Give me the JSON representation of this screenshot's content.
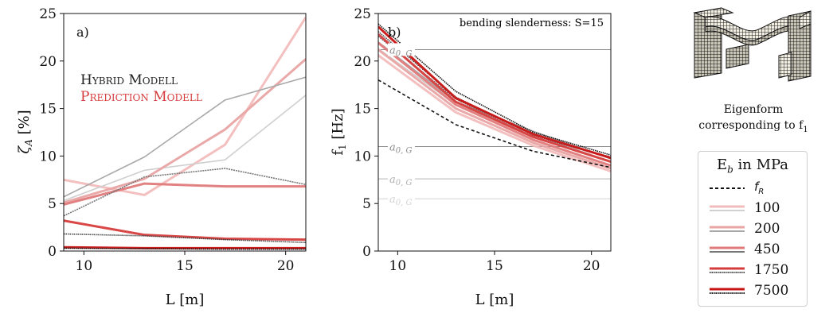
{
  "figure": {
    "panel_a_tag": "a)",
    "panel_b_tag": "b)",
    "annotation_b": "bending slenderness: S=15",
    "model_text_1": "Hybrid Modell",
    "model_text_2": "Prediction Modell",
    "eigen_caption_line1": "Eigenform",
    "eigen_caption_line2": "corresponding to f",
    "eigen_caption_sub": "1"
  },
  "legend": {
    "title": "E",
    "title_sub": "b",
    "title_rest": " in MPa",
    "entries": [
      {
        "label": "f",
        "sub": "R"
      },
      {
        "label": "100"
      },
      {
        "label": "200"
      },
      {
        "label": "450"
      },
      {
        "label": "1750"
      },
      {
        "label": "7500"
      }
    ]
  },
  "chart_data": [
    {
      "type": "line",
      "panel": "a",
      "xlabel": "L [m]",
      "ylabel": "ζ",
      "ylabel_sub": "A",
      "ylabel_unit": " [%]",
      "xlim": [
        9,
        21
      ],
      "ylim": [
        0,
        25
      ],
      "xticks": [
        10,
        15,
        20
      ],
      "yticks": [
        0,
        5,
        10,
        15,
        20,
        25
      ],
      "x": [
        9,
        13,
        17,
        21
      ],
      "colors": {
        "100": "#f2bcbc",
        "200": "#e9a4a4",
        "450": "#e07a7a",
        "1750": "#d63c3c",
        "7500": "#c91414",
        "hybrid": "#111111"
      },
      "series": [
        {
          "Eb": "100",
          "model": "prediction",
          "values": [
            7.5,
            5.9,
            11.2,
            24.6
          ]
        },
        {
          "Eb": "100",
          "model": "hybrid",
          "values": [
            5.3,
            8.5,
            9.6,
            16.4
          ]
        },
        {
          "Eb": "200",
          "model": "prediction",
          "values": [
            5.1,
            7.6,
            12.8,
            20.2
          ]
        },
        {
          "Eb": "200",
          "model": "hybrid",
          "values": [
            5.7,
            9.9,
            15.9,
            18.3
          ]
        },
        {
          "Eb": "450",
          "model": "prediction",
          "values": [
            4.9,
            7.1,
            6.8,
            6.8
          ]
        },
        {
          "Eb": "450",
          "model": "hybrid",
          "values": [
            3.7,
            7.8,
            8.7,
            7.0
          ]
        },
        {
          "Eb": "1750",
          "model": "prediction",
          "values": [
            3.2,
            1.7,
            1.3,
            1.2
          ]
        },
        {
          "Eb": "1750",
          "model": "hybrid",
          "values": [
            1.8,
            1.6,
            1.2,
            0.9
          ]
        },
        {
          "Eb": "7500",
          "model": "prediction",
          "values": [
            0.4,
            0.3,
            0.3,
            0.3
          ]
        },
        {
          "Eb": "7500",
          "model": "hybrid",
          "values": [
            0.3,
            0.25,
            0.2,
            0.2
          ]
        }
      ]
    },
    {
      "type": "line",
      "panel": "b",
      "xlabel": "L [m]",
      "ylabel": "f",
      "ylabel_sub": "1",
      "ylabel_unit": " [Hz]",
      "xlim": [
        9,
        21
      ],
      "ylim": [
        0,
        25
      ],
      "xticks": [
        10,
        15,
        20
      ],
      "yticks": [
        0,
        5,
        10,
        15,
        20,
        25
      ],
      "x": [
        9,
        13,
        17,
        21
      ],
      "fR": [
        18.0,
        13.3,
        10.5,
        8.8
      ],
      "reference_lines": [
        {
          "label": "a",
          "sub": "0, G",
          "y": 21.2,
          "color": "#8c8c8c"
        },
        {
          "label": "a",
          "sub": "0, G",
          "y": 11.0,
          "color": "#8c8c8c"
        },
        {
          "label": "a",
          "sub": "0, G",
          "y": 7.6,
          "color": "#b0b0b0"
        },
        {
          "label": "a",
          "sub": "0, G",
          "y": 5.5,
          "color": "#d3d3d3"
        }
      ],
      "colors": {
        "100": "#f2bcbc",
        "200": "#e9a4a4",
        "450": "#e07a7a",
        "1750": "#d63c3c",
        "7500": "#c91414",
        "hybrid": "#111111"
      },
      "series": [
        {
          "Eb": "100",
          "model": "prediction",
          "values": [
            20.6,
            14.6,
            11.1,
            8.4
          ]
        },
        {
          "Eb": "100",
          "model": "hybrid",
          "values": [
            21.3,
            15.4,
            12.3,
            9.4
          ]
        },
        {
          "Eb": "200",
          "model": "prediction",
          "values": [
            21.2,
            15.0,
            11.4,
            8.7
          ]
        },
        {
          "Eb": "200",
          "model": "hybrid",
          "values": [
            22.0,
            15.7,
            12.6,
            9.7
          ]
        },
        {
          "Eb": "450",
          "model": "prediction",
          "values": [
            21.9,
            15.4,
            11.7,
            9.0
          ]
        },
        {
          "Eb": "450",
          "model": "hybrid",
          "values": [
            22.6,
            16.0,
            12.0,
            9.9
          ]
        },
        {
          "Eb": "1750",
          "model": "prediction",
          "values": [
            22.8,
            15.7,
            12.0,
            9.4
          ]
        },
        {
          "Eb": "1750",
          "model": "hybrid",
          "values": [
            23.1,
            16.2,
            12.2,
            9.8
          ]
        },
        {
          "Eb": "7500",
          "model": "prediction",
          "values": [
            23.6,
            16.1,
            12.3,
            9.8
          ]
        },
        {
          "Eb": "7500",
          "model": "hybrid",
          "values": [
            23.9,
            16.8,
            12.5,
            10.1
          ]
        }
      ]
    }
  ]
}
